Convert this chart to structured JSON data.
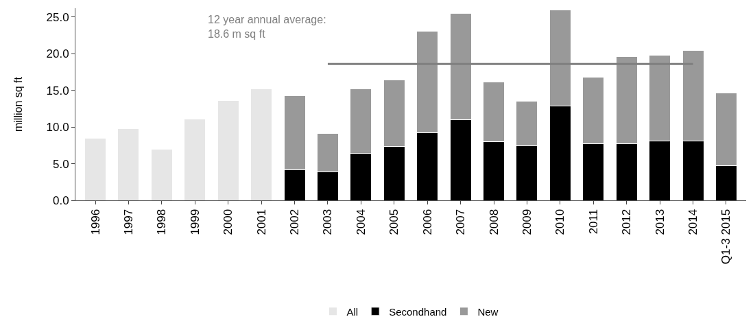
{
  "chart_data": {
    "type": "bar",
    "stacked": true,
    "ylabel": "million sq ft",
    "categories": [
      "1996",
      "1997",
      "1998",
      "1999",
      "2000",
      "2001",
      "2002",
      "2003",
      "2004",
      "2005",
      "2006",
      "2007",
      "2008",
      "2009",
      "2010",
      "2011",
      "2012",
      "2013",
      "2014",
      "Q1-3 2015"
    ],
    "series": [
      {
        "name": "All",
        "color": "#e6e6e6",
        "values": [
          8.5,
          9.8,
          7.0,
          11.1,
          13.6,
          15.2,
          null,
          null,
          null,
          null,
          null,
          null,
          null,
          null,
          null,
          null,
          null,
          null,
          null,
          null
        ]
      },
      {
        "name": "Secondhand",
        "color": "#000000",
        "values": [
          null,
          null,
          null,
          null,
          null,
          null,
          4.2,
          3.9,
          6.4,
          7.3,
          9.2,
          11.0,
          8.0,
          7.4,
          12.9,
          7.7,
          7.7,
          8.1,
          8.1,
          4.7
        ]
      },
      {
        "name": "New",
        "color": "#999999",
        "values": [
          null,
          null,
          null,
          null,
          null,
          null,
          10.1,
          5.2,
          8.8,
          9.1,
          13.9,
          14.5,
          8.1,
          6.1,
          13.1,
          9.1,
          11.9,
          11.7,
          12.3,
          9.9
        ]
      },
      {
        "type": "line",
        "color": "#7f7f7f",
        "values": [
          null,
          null,
          null,
          null,
          null,
          null,
          null,
          18.6,
          18.6,
          18.6,
          18.6,
          18.6,
          18.6,
          18.6,
          18.6,
          18.6,
          18.6,
          18.6,
          18.6,
          null
        ]
      }
    ],
    "annotations": [
      "12 year annual average:\n18.6 m sq ft"
    ],
    "ylim": [
      0,
      26.2
    ],
    "yticks": [
      {
        "value": 0,
        "label": "0.0"
      },
      {
        "value": 5,
        "label": "5.0"
      },
      {
        "value": 10,
        "label": "10.0"
      },
      {
        "value": 15,
        "label": "15.0"
      },
      {
        "value": 20,
        "label": "20.0"
      },
      {
        "value": 25,
        "label": "25.0"
      }
    ],
    "legend": "bottom"
  }
}
